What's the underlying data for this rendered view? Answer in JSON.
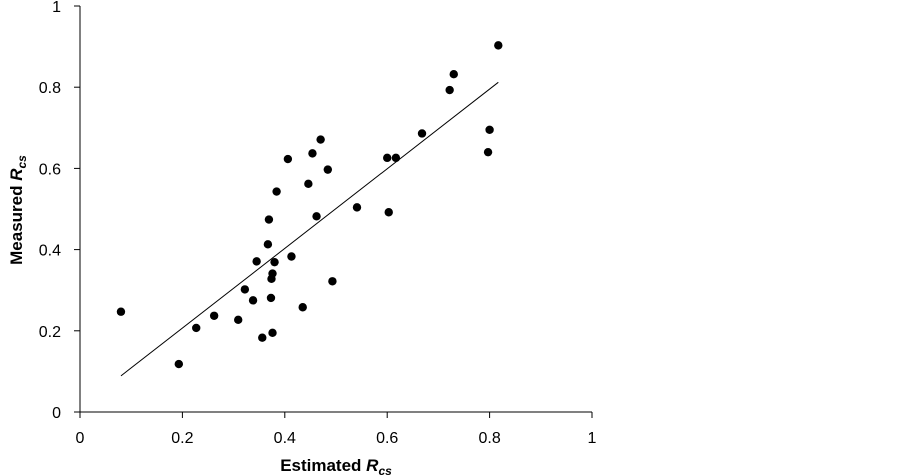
{
  "chart_data": {
    "type": "scatter",
    "xlabel": {
      "main": "Estimated ",
      "var": "R",
      "sub": "cs"
    },
    "ylabel": {
      "main": "Measured ",
      "var": "R",
      "sub": "cs"
    },
    "xlim": [
      0,
      1
    ],
    "ylim": [
      0,
      1
    ],
    "x_ticks": [
      "0",
      "0.2",
      "0.4",
      "0.6",
      "0.8",
      "1"
    ],
    "y_ticks": [
      "0",
      "0.2",
      "0.4",
      "0.6",
      "0.8",
      "1"
    ],
    "grid": false,
    "legend": "none",
    "marker_color": "#000000",
    "points": [
      {
        "x": 0.08,
        "y": 0.247
      },
      {
        "x": 0.193,
        "y": 0.118
      },
      {
        "x": 0.227,
        "y": 0.207
      },
      {
        "x": 0.262,
        "y": 0.237
      },
      {
        "x": 0.309,
        "y": 0.227
      },
      {
        "x": 0.322,
        "y": 0.302
      },
      {
        "x": 0.338,
        "y": 0.275
      },
      {
        "x": 0.345,
        "y": 0.371
      },
      {
        "x": 0.356,
        "y": 0.183
      },
      {
        "x": 0.367,
        "y": 0.413
      },
      {
        "x": 0.369,
        "y": 0.474
      },
      {
        "x": 0.373,
        "y": 0.281
      },
      {
        "x": 0.374,
        "y": 0.328
      },
      {
        "x": 0.376,
        "y": 0.341
      },
      {
        "x": 0.376,
        "y": 0.195
      },
      {
        "x": 0.38,
        "y": 0.369
      },
      {
        "x": 0.384,
        "y": 0.543
      },
      {
        "x": 0.406,
        "y": 0.623
      },
      {
        "x": 0.413,
        "y": 0.383
      },
      {
        "x": 0.435,
        "y": 0.258
      },
      {
        "x": 0.446,
        "y": 0.562
      },
      {
        "x": 0.454,
        "y": 0.637
      },
      {
        "x": 0.462,
        "y": 0.482
      },
      {
        "x": 0.47,
        "y": 0.671
      },
      {
        "x": 0.484,
        "y": 0.597
      },
      {
        "x": 0.493,
        "y": 0.322
      },
      {
        "x": 0.541,
        "y": 0.504
      },
      {
        "x": 0.6,
        "y": 0.626
      },
      {
        "x": 0.603,
        "y": 0.492
      },
      {
        "x": 0.617,
        "y": 0.626
      },
      {
        "x": 0.668,
        "y": 0.686
      },
      {
        "x": 0.722,
        "y": 0.793
      },
      {
        "x": 0.73,
        "y": 0.832
      },
      {
        "x": 0.797,
        "y": 0.64
      },
      {
        "x": 0.8,
        "y": 0.695
      },
      {
        "x": 0.817,
        "y": 0.903
      }
    ],
    "trendline": {
      "type": "linear",
      "x": [
        0.08,
        0.817
      ],
      "y": [
        0.089,
        0.812
      ]
    }
  }
}
